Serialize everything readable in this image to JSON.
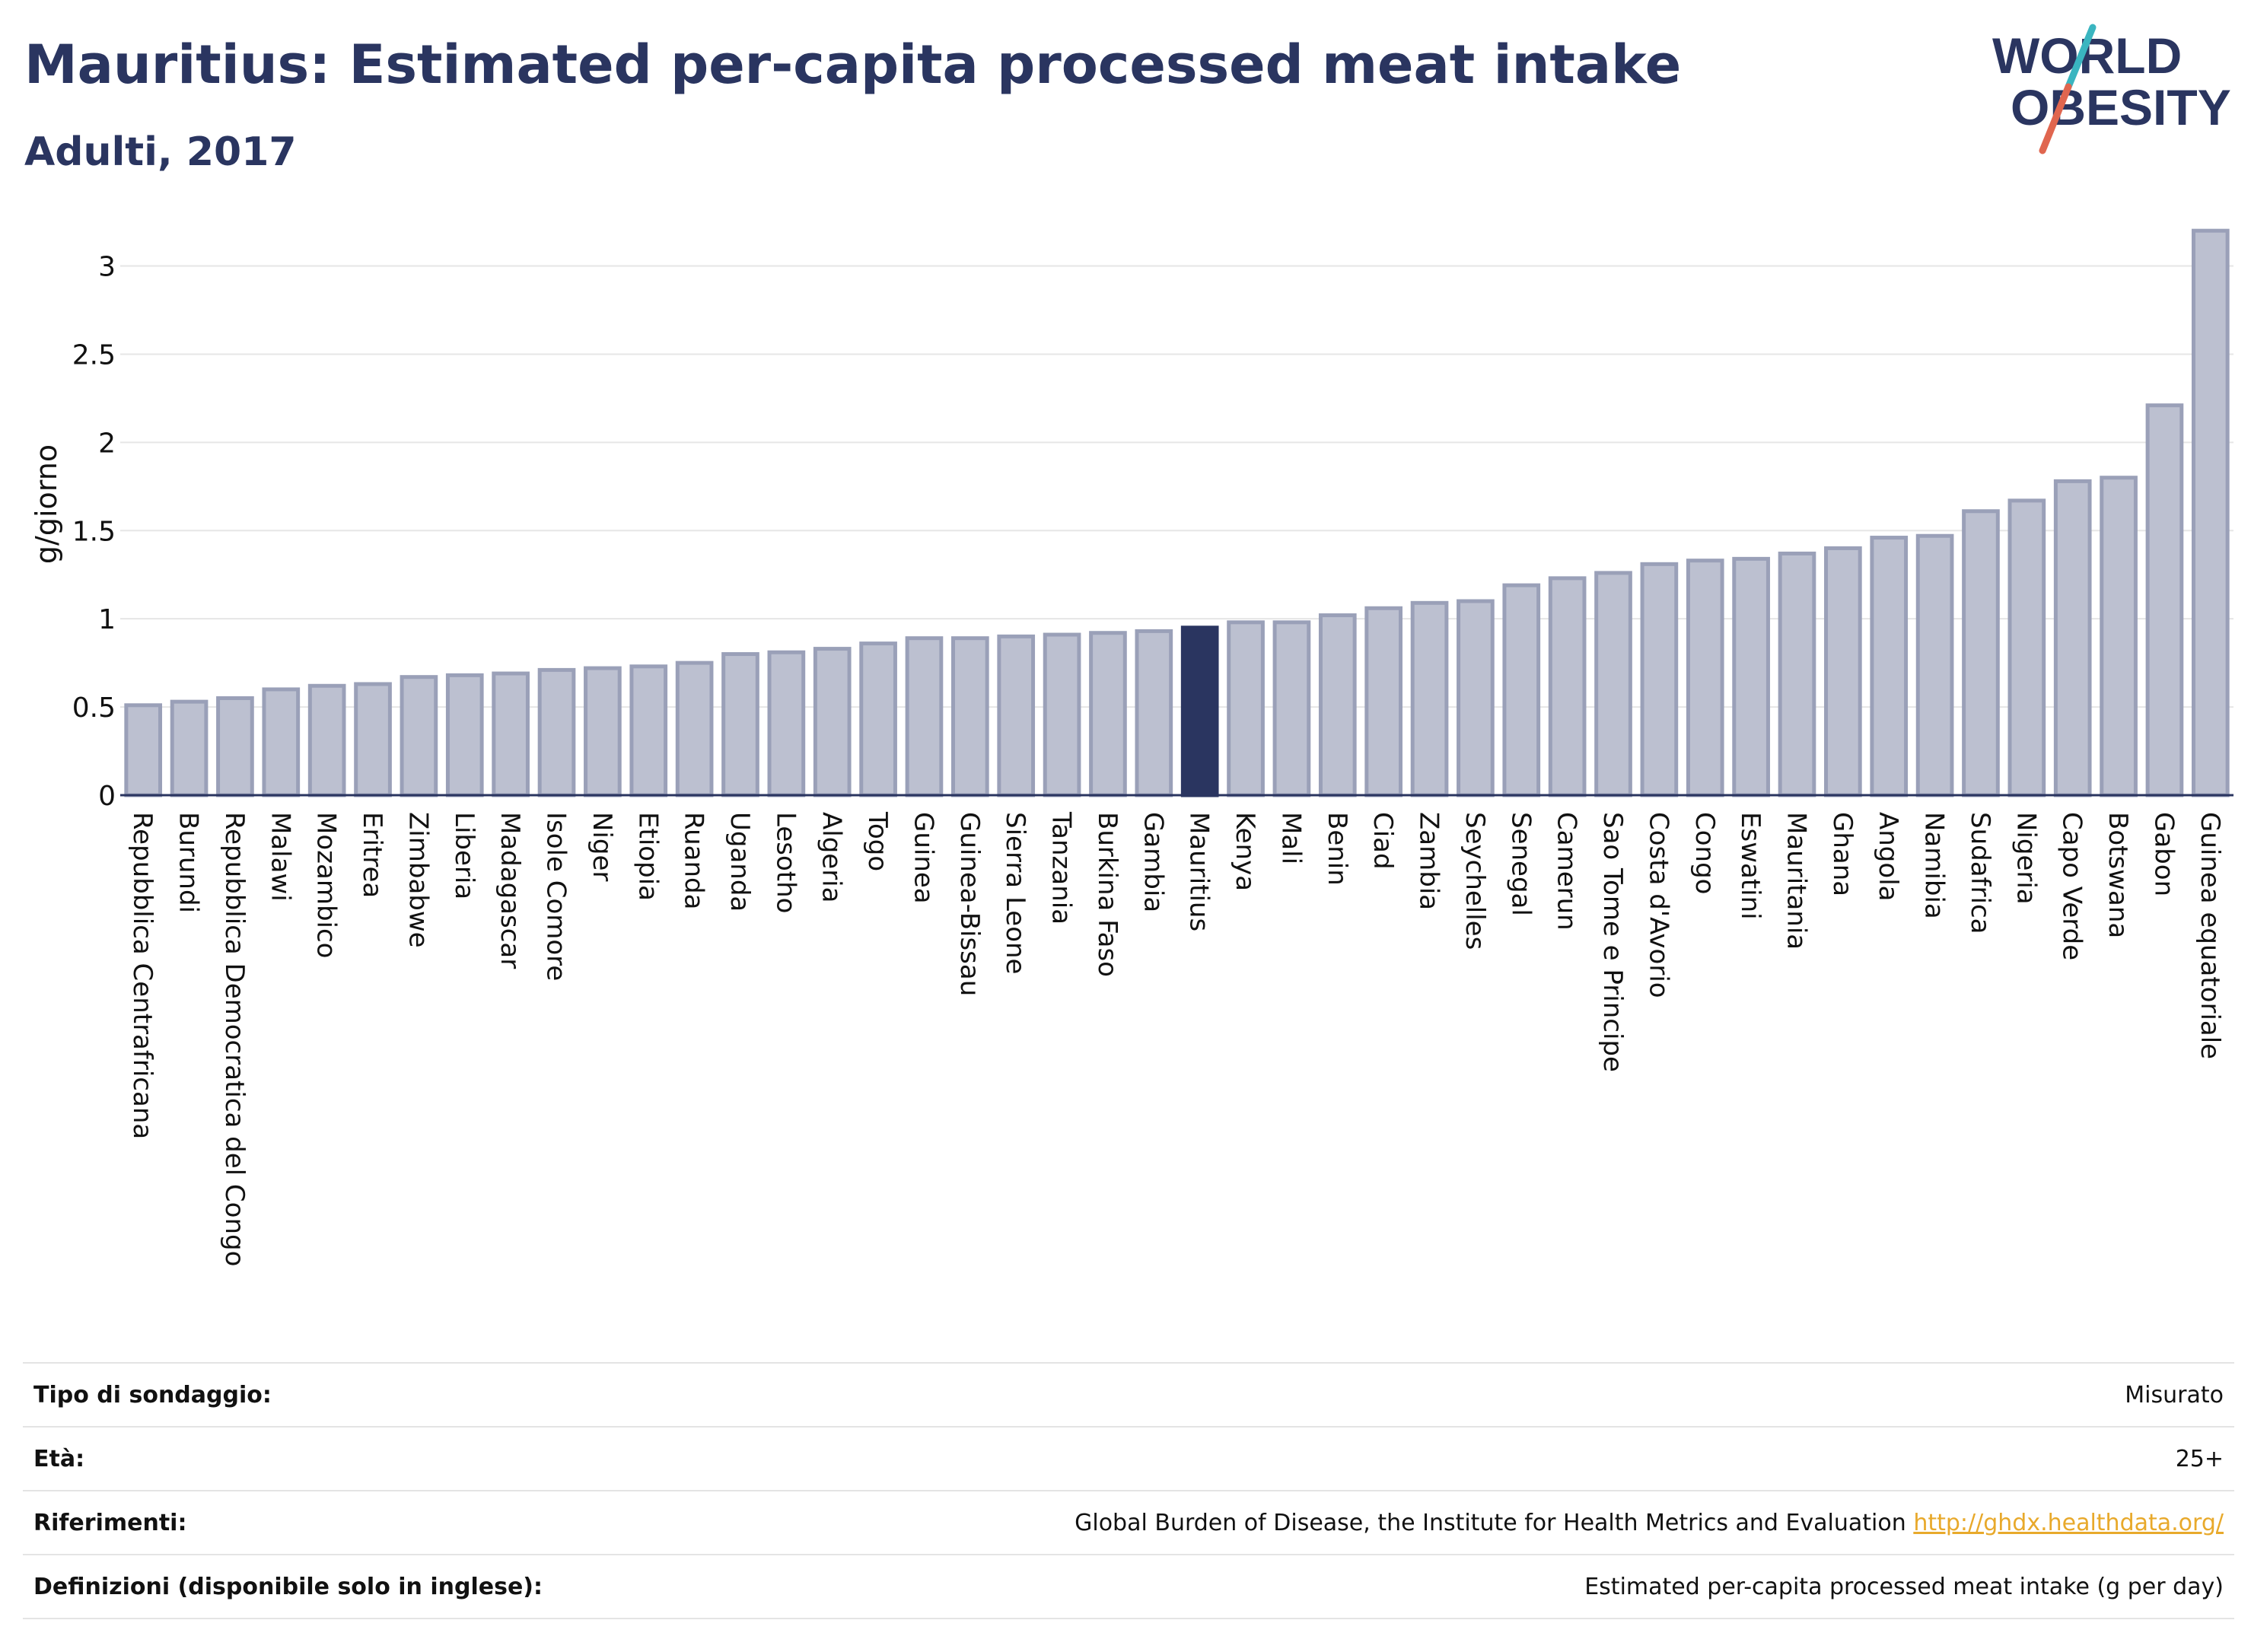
{
  "header": {
    "title": "Mauritius: Estimated per-capita processed meat intake",
    "subtitle": "Adulti, 2017"
  },
  "logo": {
    "line1": "WORLD",
    "line2": "OBESITY",
    "colors": {
      "text": "#2a3560",
      "slash_top": "#3ab5c0",
      "slash_bottom": "#e0664f"
    }
  },
  "chart_data": {
    "type": "bar",
    "ylabel": "g/giorno",
    "ylim": [
      0,
      3.3
    ],
    "yticks": [
      0,
      0.5,
      1,
      1.5,
      2,
      2.5,
      3
    ],
    "ytick_labels": [
      "0",
      "0.5",
      "1",
      "1.5",
      "2",
      "2.5",
      "3"
    ],
    "grid": true,
    "highlight": "Mauritius",
    "colors": {
      "bar": "#bcc0d0",
      "bar_edge": "#9aa0b8",
      "highlight": "#2a3560"
    },
    "categories": [
      "Repubblica Centrafricana",
      "Burundi",
      "Repubblica Democratica del Congo",
      "Malawi",
      "Mozambico",
      "Eritrea",
      "Zimbabwe",
      "Liberia",
      "Madagascar",
      "Isole Comore",
      "Niger",
      "Etiopia",
      "Ruanda",
      "Uganda",
      "Lesotho",
      "Algeria",
      "Togo",
      "Guinea",
      "Guinea-Bissau",
      "Sierra Leone",
      "Tanzania",
      "Burkina Faso",
      "Gambia",
      "Mauritius",
      "Kenya",
      "Mali",
      "Benin",
      "Ciad",
      "Zambia",
      "Seychelles",
      "Senegal",
      "Camerun",
      "Sao Tome e Principe",
      "Costa d'Avorio",
      "Congo",
      "Eswatini",
      "Mauritania",
      "Ghana",
      "Angola",
      "Namibia",
      "Sudafrica",
      "Nigeria",
      "Capo Verde",
      "Botswana",
      "Gabon",
      "Guinea equatoriale"
    ],
    "values": [
      0.51,
      0.53,
      0.55,
      0.6,
      0.62,
      0.63,
      0.67,
      0.68,
      0.69,
      0.71,
      0.72,
      0.73,
      0.75,
      0.8,
      0.81,
      0.83,
      0.86,
      0.89,
      0.89,
      0.9,
      0.91,
      0.92,
      0.93,
      0.95,
      0.98,
      0.98,
      1.02,
      1.06,
      1.09,
      1.1,
      1.19,
      1.23,
      1.26,
      1.31,
      1.33,
      1.34,
      1.37,
      1.4,
      1.46,
      1.47,
      1.61,
      1.67,
      1.78,
      1.8,
      2.21,
      3.2
    ]
  },
  "info": {
    "rows": [
      {
        "label": "Tipo di sondaggio:",
        "value": "Misurato"
      },
      {
        "label": "Età:",
        "value": "25+"
      },
      {
        "label": "Riferimenti:",
        "value": "Global Burden of Disease, the Institute for Health Metrics and Evaluation",
        "link": "http://ghdx.healthdata.org/"
      },
      {
        "label": "Definizioni (disponibile solo in inglese):",
        "value": "Estimated per-capita processed meat intake (g per day)"
      }
    ]
  }
}
